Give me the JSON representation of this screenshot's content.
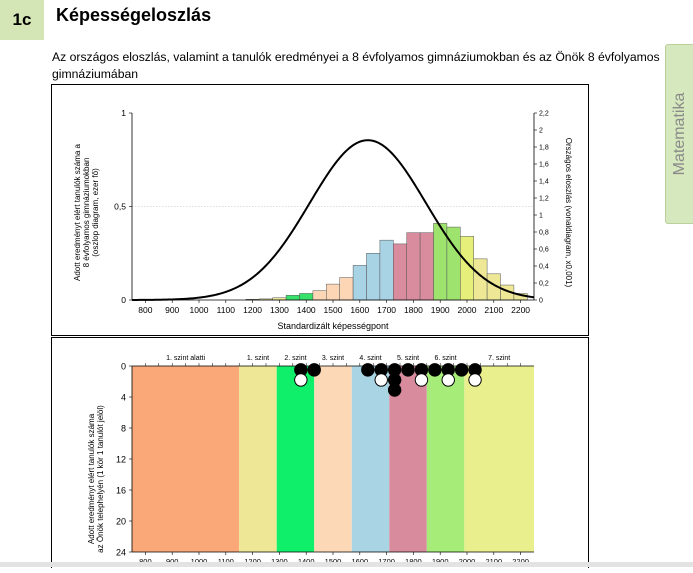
{
  "header": {
    "badge": "1c",
    "title": "Képességeloszlás",
    "subtitle": "Az országos eloszlás, valamint a tanulók eredményei a 8 évfolyamos gimnáziumokban és az Önök 8 évfolyamos gimnáziumában"
  },
  "side_tab": {
    "label": "Matematika"
  },
  "chart_data": [
    {
      "type": "bar",
      "xlabel": "Standardizált képességpont",
      "ylabel": [
        "Adott eredményt elért tanulók száma a",
        "8 évfolyamos gimnáziumokban",
        "(oszlop diagram, ezer fő)"
      ],
      "y2label": "Országos eloszlás (vonaldiagram, x0,001)",
      "xlim": [
        750,
        2250
      ],
      "x_ticks": [
        "800",
        "900",
        "1000",
        "1100",
        "1200",
        "1300",
        "1400",
        "1500",
        "1600",
        "1700",
        "1800",
        "1900",
        "2000",
        "2100",
        "2200"
      ],
      "ylim": [
        0,
        1
      ],
      "y_ticks": [
        "0",
        "0,5",
        "1"
      ],
      "y2lim": [
        0,
        2.2
      ],
      "y2_ticks": [
        "0",
        "0,2",
        "0,4",
        "0,6",
        "0,8",
        "1",
        "1,2",
        "1,4",
        "1,6",
        "1,8",
        "2",
        "2,2"
      ],
      "bin_width": 50,
      "bins": [
        {
          "x": 1200,
          "value": 0.004,
          "color": "#eee896"
        },
        {
          "x": 1250,
          "value": 0.006,
          "color": "#eee896"
        },
        {
          "x": 1300,
          "value": 0.012,
          "color": "#eee896"
        },
        {
          "x": 1350,
          "value": 0.025,
          "color": "#36e26a"
        },
        {
          "x": 1400,
          "value": 0.035,
          "color": "#36e26a"
        },
        {
          "x": 1450,
          "value": 0.05,
          "color": "#fcd6b5"
        },
        {
          "x": 1500,
          "value": 0.085,
          "color": "#fcd6b5"
        },
        {
          "x": 1550,
          "value": 0.12,
          "color": "#fcd6b5"
        },
        {
          "x": 1600,
          "value": 0.185,
          "color": "#a8d3e4"
        },
        {
          "x": 1650,
          "value": 0.25,
          "color": "#a8d3e4"
        },
        {
          "x": 1700,
          "value": 0.32,
          "color": "#a8d3e4"
        },
        {
          "x": 1750,
          "value": 0.3,
          "color": "#d98c9e"
        },
        {
          "x": 1800,
          "value": 0.36,
          "color": "#d98c9e"
        },
        {
          "x": 1850,
          "value": 0.36,
          "color": "#d98c9e"
        },
        {
          "x": 1900,
          "value": 0.41,
          "color": "#9ee36e"
        },
        {
          "x": 1950,
          "value": 0.39,
          "color": "#9ee36e"
        },
        {
          "x": 2000,
          "value": 0.34,
          "color": "#e6ef7a"
        },
        {
          "x": 2050,
          "value": 0.22,
          "color": "#eee896"
        },
        {
          "x": 2100,
          "value": 0.14,
          "color": "#eee896"
        },
        {
          "x": 2150,
          "value": 0.08,
          "color": "#eee896"
        },
        {
          "x": 2200,
          "value": 0.035,
          "color": "#eee896"
        }
      ],
      "line": {
        "mean": 1630,
        "sd": 217,
        "peak": 1.88
      }
    },
    {
      "type": "scatter",
      "ylabel": [
        "Adott eredményt elért tanulók száma",
        "az Önök telephelyén (1 kör 1 tanulót jelöl)"
      ],
      "xlim": [
        750,
        2250
      ],
      "x_ticks": [
        "800",
        "900",
        "1000",
        "1100",
        "1200",
        "1300",
        "1400",
        "1500",
        "1600",
        "1700",
        "1800",
        "1900",
        "2000",
        "2100",
        "2200"
      ],
      "ylim": [
        0,
        24
      ],
      "y_ticks": [
        "0",
        "4",
        "8",
        "12",
        "16",
        "20",
        "24"
      ],
      "levels": [
        {
          "label": "1. szint alatti",
          "from": 750,
          "to": 1150,
          "color": "#fba878"
        },
        {
          "label": "1. szint",
          "from": 1150,
          "to": 1290,
          "color": "#eee896"
        },
        {
          "label": "2. szint",
          "from": 1290,
          "to": 1430,
          "color": "#10ef6a"
        },
        {
          "label": "3. szint",
          "from": 1430,
          "to": 1570,
          "color": "#fdd8b7"
        },
        {
          "label": "4. szint",
          "from": 1570,
          "to": 1710,
          "color": "#a9d4e3"
        },
        {
          "label": "5. szint",
          "from": 1710,
          "to": 1850,
          "color": "#d88b9c"
        },
        {
          "label": "6. szint",
          "from": 1850,
          "to": 1990,
          "color": "#a6ec78"
        },
        {
          "label": "7. szint",
          "from": 1990,
          "to": 2250,
          "color": "#eaef8e"
        }
      ],
      "points": [
        {
          "x": 1380,
          "y": 0.5,
          "fill": "#000000"
        },
        {
          "x": 1380,
          "y": 1.8,
          "fill": "#ffffff"
        },
        {
          "x": 1430,
          "y": 0.5,
          "fill": "#000000"
        },
        {
          "x": 1630,
          "y": 0.5,
          "fill": "#000000"
        },
        {
          "x": 1680,
          "y": 0.5,
          "fill": "#000000"
        },
        {
          "x": 1680,
          "y": 1.8,
          "fill": "#ffffff"
        },
        {
          "x": 1730,
          "y": 0.5,
          "fill": "#000000"
        },
        {
          "x": 1730,
          "y": 1.8,
          "fill": "#000000"
        },
        {
          "x": 1730,
          "y": 3.1,
          "fill": "#000000"
        },
        {
          "x": 1780,
          "y": 0.5,
          "fill": "#000000"
        },
        {
          "x": 1830,
          "y": 0.5,
          "fill": "#000000"
        },
        {
          "x": 1830,
          "y": 1.8,
          "fill": "#ffffff"
        },
        {
          "x": 1880,
          "y": 0.5,
          "fill": "#000000"
        },
        {
          "x": 1930,
          "y": 0.5,
          "fill": "#000000"
        },
        {
          "x": 1930,
          "y": 1.8,
          "fill": "#ffffff"
        },
        {
          "x": 1980,
          "y": 0.5,
          "fill": "#000000"
        },
        {
          "x": 2030,
          "y": 0.5,
          "fill": "#000000"
        },
        {
          "x": 2030,
          "y": 1.8,
          "fill": "#ffffff"
        }
      ]
    }
  ]
}
